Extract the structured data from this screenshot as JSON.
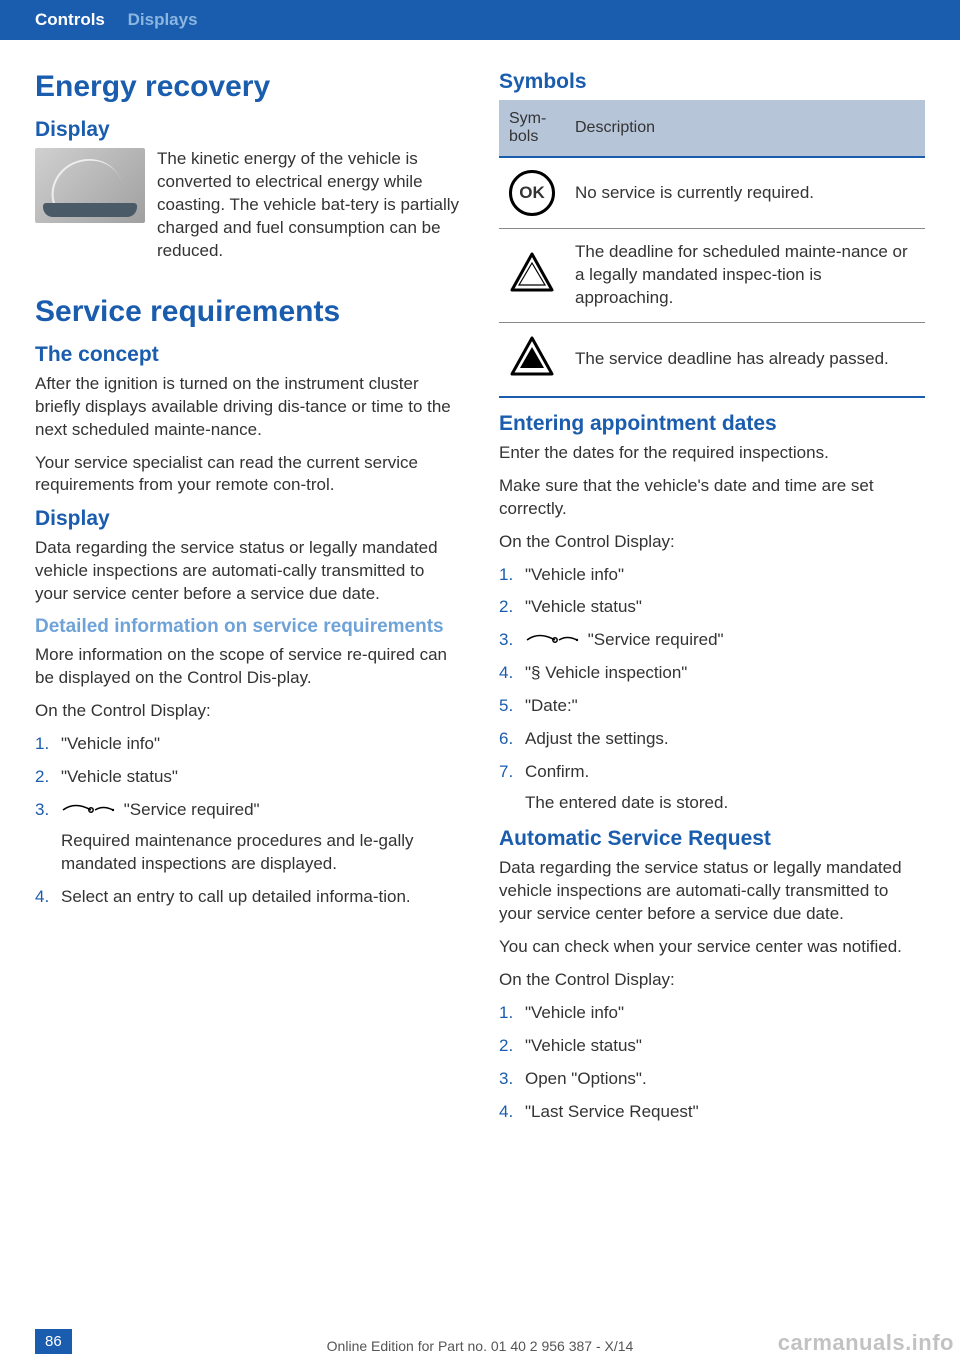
{
  "colors": {
    "primary": "#1a5cad",
    "secondary": "#6fa3d8",
    "table_header_bg": "#b7c5d9",
    "text": "#333333",
    "page_bg": "#ffffff"
  },
  "header": {
    "breadcrumb1": "Controls",
    "breadcrumb2": "Displays"
  },
  "left": {
    "energy_h1": "Energy recovery",
    "display_h2": "Display",
    "display_text": "The kinetic energy of the vehicle is converted to electrical energy while coasting. The vehicle bat‐tery is partially charged and fuel consumption can be reduced.",
    "service_h1": "Service requirements",
    "concept_h2": "The concept",
    "concept_p1": "After the ignition is turned on the instrument cluster briefly displays available driving dis‐tance or time to the next scheduled mainte‐nance.",
    "concept_p2": "Your service specialist can read the current service requirements from your remote con‐trol.",
    "display2_h2": "Display",
    "display2_p1": "Data regarding the service status or legally mandated vehicle inspections are automati‐cally transmitted to your service center before a service due date.",
    "detailed_h3": "Detailed information on service requirements",
    "detailed_p1": "More information on the scope of service re‐quired can be displayed on the Control Dis‐play.",
    "detailed_p2": "On the Control Display:",
    "detailed_steps": [
      {
        "n": "1.",
        "t": "\"Vehicle info\""
      },
      {
        "n": "2.",
        "t": "\"Vehicle status\""
      },
      {
        "n": "3.",
        "t": "\"Service required\"",
        "icon": true,
        "sub": "Required maintenance procedures and le‐gally mandated inspections are displayed."
      },
      {
        "n": "4.",
        "t": "Select an entry to call up detailed informa‐tion."
      }
    ]
  },
  "right": {
    "symbols_h2": "Symbols",
    "table": {
      "col1": "Sym‐bols",
      "col2": "Description",
      "rows": [
        {
          "icon": "ok",
          "desc": "No service is currently required."
        },
        {
          "icon": "tri_open",
          "desc": "The deadline for scheduled mainte‐nance or a legally mandated inspec‐tion is approaching."
        },
        {
          "icon": "tri_solid",
          "desc": "The service deadline has already passed."
        }
      ]
    },
    "appt_h2": "Entering appointment dates",
    "appt_p1": "Enter the dates for the required inspections.",
    "appt_p2": "Make sure that the vehicle's date and time are set correctly.",
    "appt_p3": "On the Control Display:",
    "appt_steps": [
      {
        "n": "1.",
        "t": "\"Vehicle info\""
      },
      {
        "n": "2.",
        "t": "\"Vehicle status\""
      },
      {
        "n": "3.",
        "t": "\"Service required\"",
        "icon": true
      },
      {
        "n": "4.",
        "t": "\"§ Vehicle inspection\""
      },
      {
        "n": "5.",
        "t": "\"Date:\""
      },
      {
        "n": "6.",
        "t": "Adjust the settings."
      },
      {
        "n": "7.",
        "t": "Confirm.",
        "sub": "The entered date is stored."
      }
    ],
    "auto_h2": "Automatic Service Request",
    "auto_p1": "Data regarding the service status or legally mandated vehicle inspections are automati‐cally transmitted to your service center before a service due date.",
    "auto_p2": "You can check when your service center was notified.",
    "auto_p3": "On the Control Display:",
    "auto_steps": [
      {
        "n": "1.",
        "t": "\"Vehicle info\""
      },
      {
        "n": "2.",
        "t": "\"Vehicle status\""
      },
      {
        "n": "3.",
        "t": "Open \"Options\"."
      },
      {
        "n": "4.",
        "t": "\"Last Service Request\""
      }
    ]
  },
  "footer": {
    "page_num": "86",
    "edition": "Online Edition for Part no. 01 40 2 956 387 - X/14",
    "watermark": "carmanuals.info"
  }
}
